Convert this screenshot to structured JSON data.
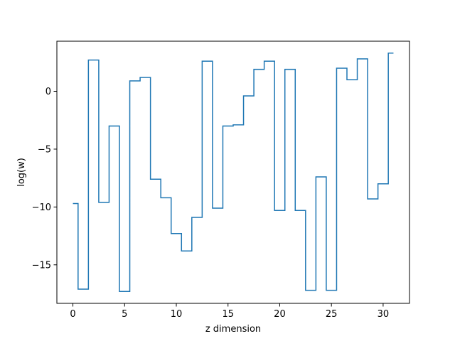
{
  "chart_data": {
    "type": "line",
    "drawstyle": "steps-mid",
    "title": "",
    "xlabel": "z dimension",
    "ylabel": "log(w)",
    "grid": false,
    "x": [
      0,
      1,
      2,
      3,
      4,
      5,
      6,
      7,
      8,
      9,
      10,
      11,
      12,
      13,
      14,
      15,
      16,
      17,
      18,
      19,
      20,
      21,
      22,
      23,
      24,
      25,
      26,
      27,
      28,
      29,
      30,
      31
    ],
    "series": [
      {
        "name": "",
        "color": "#1f77b4",
        "values": [
          -9.7,
          -17.1,
          2.7,
          -9.6,
          -3.0,
          -17.3,
          0.9,
          1.2,
          -7.6,
          -9.2,
          -12.3,
          -13.8,
          -10.9,
          2.6,
          -10.1,
          -3.0,
          -2.9,
          -0.4,
          1.9,
          2.6,
          -10.3,
          1.9,
          -10.3,
          -17.2,
          -7.4,
          -17.2,
          2.0,
          1.0,
          2.8,
          -9.3,
          -8.0,
          3.3
        ]
      }
    ],
    "xlim": [
      -1.55,
      32.55
    ],
    "ylim": [
      -18.33,
      4.33
    ],
    "xticks": [
      0,
      5,
      10,
      15,
      20,
      25,
      30
    ],
    "xtick_labels": [
      "0",
      "5",
      "10",
      "15",
      "20",
      "25",
      "30"
    ],
    "yticks": [
      -15,
      -10,
      -5,
      0
    ],
    "ytick_labels": [
      "−15",
      "−10",
      "−5",
      "0"
    ]
  }
}
